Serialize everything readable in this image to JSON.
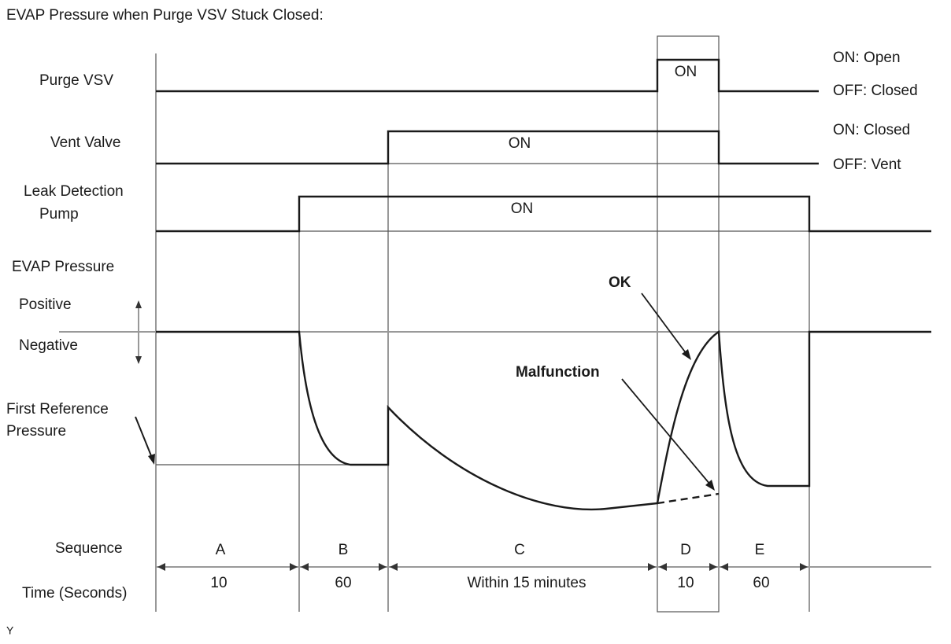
{
  "title": "EVAP Pressure when Purge VSV Stuck Closed:",
  "signals": [
    {
      "label": [
        "Purge VSV"
      ],
      "on_label": "ON",
      "states": [
        "ON: Open",
        "OFF: Closed"
      ]
    },
    {
      "label": [
        "Vent Valve"
      ],
      "on_label": "ON",
      "states": [
        "ON: Closed",
        "OFF: Vent"
      ]
    },
    {
      "label": [
        "Leak Detection",
        "Pump"
      ],
      "on_label": "ON"
    }
  ],
  "evap": {
    "label": "EVAP Pressure",
    "positive": "Positive",
    "negative": "Negative",
    "reference": [
      "First Reference",
      "Pressure"
    ],
    "ok": "OK",
    "malfunction": "Malfunction"
  },
  "sequence": {
    "label": "Sequence",
    "steps": [
      "A",
      "B",
      "C",
      "D",
      "E"
    ]
  },
  "time": {
    "label": "Time (Seconds)",
    "values": [
      10,
      60,
      "Within 15 minutes",
      10,
      60
    ]
  },
  "footer": "Y"
}
